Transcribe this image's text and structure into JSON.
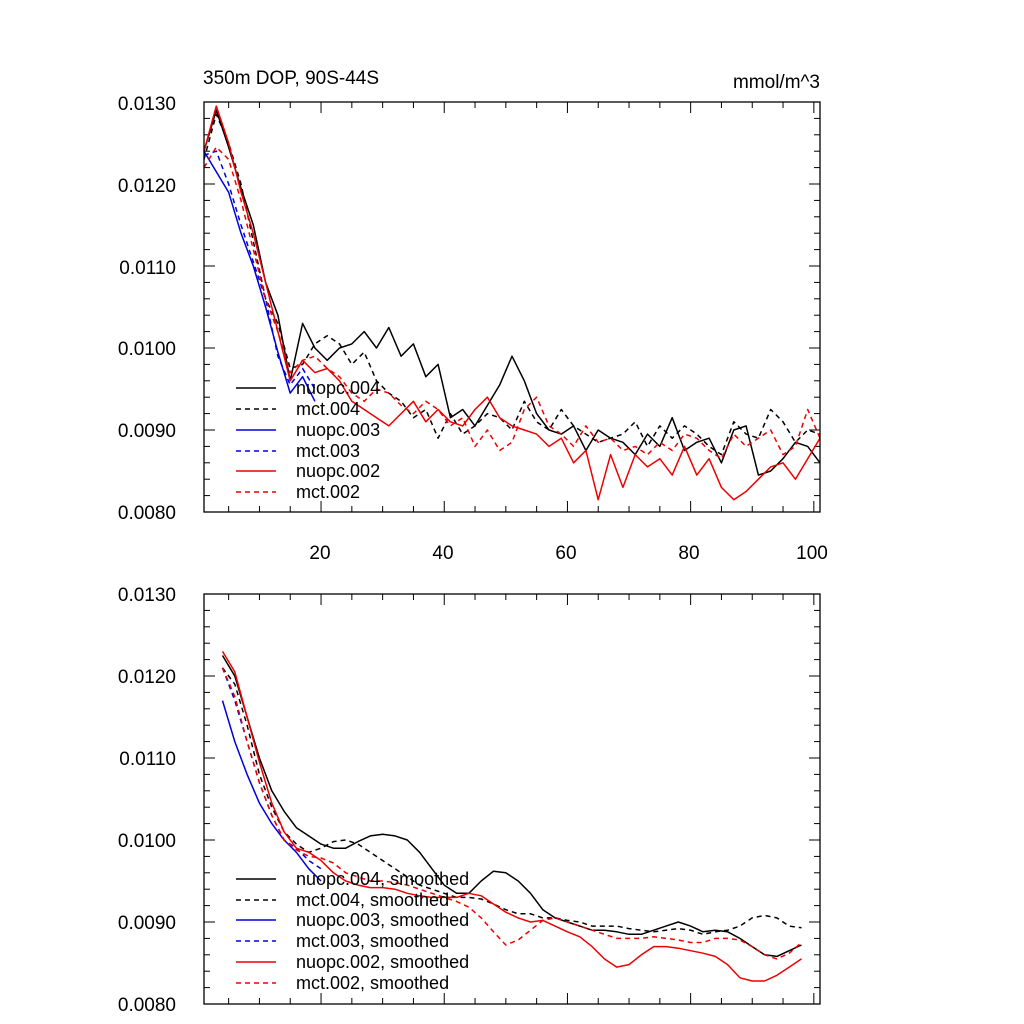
{
  "colors": {
    "black": "#000000",
    "blue": "#0000dd",
    "red": "#ee0000"
  },
  "chart_data": [
    {
      "type": "line",
      "title": "350m DOP, 90S-44S",
      "units": "mmol/m^3",
      "xlim": [
        1,
        101
      ],
      "ylim": [
        0.008,
        0.013
      ],
      "yticks": [
        "0.0130",
        "0.0120",
        "0.0110",
        "0.0100",
        "0.0090",
        "0.0080"
      ],
      "xticks": [
        "20",
        "40",
        "60",
        "80",
        "100"
      ],
      "legend_position": "lower-left",
      "series": [
        {
          "name": "nuopc.004",
          "color": "#000000",
          "dash": "solid",
          "x": [
            1,
            3,
            5,
            7,
            9,
            11,
            13,
            15,
            17,
            19,
            21,
            23,
            25,
            27,
            29,
            31,
            33,
            35,
            37,
            39,
            41,
            43,
            45,
            47,
            49,
            51,
            53,
            55,
            57,
            59,
            61,
            63,
            65,
            67,
            69,
            71,
            73,
            75,
            77,
            79,
            81,
            83,
            85,
            87,
            89,
            91,
            93,
            95,
            97,
            99,
            101
          ],
          "y": [
            0.0124,
            0.0129,
            0.01245,
            0.01195,
            0.0115,
            0.0108,
            0.0104,
            0.0096,
            0.0103,
            0.01,
            0.00985,
            0.01,
            0.01005,
            0.0102,
            0.01,
            0.01025,
            0.0099,
            0.01005,
            0.00965,
            0.0098,
            0.00915,
            0.00925,
            0.00905,
            0.0093,
            0.00955,
            0.0099,
            0.0096,
            0.0092,
            0.009,
            0.00895,
            0.00905,
            0.00875,
            0.009,
            0.0089,
            0.00885,
            0.0087,
            0.00895,
            0.0088,
            0.00915,
            0.00875,
            0.00885,
            0.0089,
            0.0086,
            0.009,
            0.00905,
            0.00845,
            0.0085,
            0.00865,
            0.00885,
            0.0088,
            0.0086
          ]
        },
        {
          "name": "mct.004",
          "color": "#000000",
          "dash": "dashed",
          "x": [
            1,
            3,
            5,
            7,
            9,
            11,
            13,
            15,
            17,
            19,
            21,
            23,
            25,
            27,
            29,
            31,
            33,
            35,
            37,
            39,
            41,
            43,
            45,
            47,
            49,
            51,
            53,
            55,
            57,
            59,
            61,
            63,
            65,
            67,
            69,
            71,
            73,
            75,
            77,
            79,
            81,
            83,
            85,
            87,
            89,
            91,
            93,
            95,
            97,
            99,
            101
          ],
          "y": [
            0.0123,
            0.01285,
            0.0125,
            0.012,
            0.0113,
            0.0106,
            0.0103,
            0.00975,
            0.0098,
            0.01005,
            0.01015,
            0.01005,
            0.0098,
            0.00995,
            0.0096,
            0.00945,
            0.00935,
            0.00915,
            0.00925,
            0.0089,
            0.0092,
            0.00895,
            0.00905,
            0.0092,
            0.00915,
            0.009,
            0.00935,
            0.0091,
            0.009,
            0.00925,
            0.00905,
            0.00895,
            0.00885,
            0.0089,
            0.00895,
            0.0091,
            0.0088,
            0.00905,
            0.0089,
            0.00905,
            0.00895,
            0.0088,
            0.0087,
            0.0091,
            0.00895,
            0.0089,
            0.00925,
            0.0091,
            0.00885,
            0.009,
            0.00895
          ]
        },
        {
          "name": "nuopc.003",
          "color": "#0000dd",
          "dash": "solid",
          "x": [
            1,
            3,
            5,
            7,
            9,
            11,
            13,
            15,
            17,
            19
          ],
          "y": [
            0.0124,
            0.01215,
            0.0119,
            0.0114,
            0.011,
            0.0105,
            0.00995,
            0.00945,
            0.00965,
            0.00935
          ]
        },
        {
          "name": "mct.003",
          "color": "#0000dd",
          "dash": "dashed",
          "x": [
            1,
            3,
            5,
            7,
            9,
            11,
            13,
            15,
            17,
            19
          ],
          "y": [
            0.01235,
            0.0124,
            0.012,
            0.0115,
            0.01105,
            0.0106,
            0.0099,
            0.00955,
            0.00975,
            0.0095
          ]
        },
        {
          "name": "nuopc.002",
          "color": "#ee0000",
          "dash": "solid",
          "x": [
            1,
            3,
            5,
            7,
            9,
            11,
            13,
            15,
            17,
            19,
            21,
            23,
            25,
            27,
            29,
            31,
            33,
            35,
            37,
            39,
            41,
            43,
            45,
            47,
            49,
            51,
            53,
            55,
            57,
            59,
            61,
            63,
            65,
            67,
            69,
            71,
            73,
            75,
            77,
            79,
            81,
            83,
            85,
            87,
            89,
            91,
            93,
            95,
            97,
            99,
            101
          ],
          "y": [
            0.0124,
            0.01295,
            0.0125,
            0.0119,
            0.0114,
            0.0108,
            0.0102,
            0.0096,
            0.00985,
            0.0097,
            0.00975,
            0.0096,
            0.00935,
            0.00925,
            0.00915,
            0.00905,
            0.0092,
            0.00935,
            0.0091,
            0.00925,
            0.0091,
            0.00905,
            0.00925,
            0.0094,
            0.00915,
            0.00905,
            0.009,
            0.00895,
            0.0088,
            0.0089,
            0.0086,
            0.00875,
            0.00815,
            0.0087,
            0.0083,
            0.0087,
            0.00855,
            0.00865,
            0.00845,
            0.0088,
            0.00845,
            0.00865,
            0.0083,
            0.00815,
            0.00825,
            0.0084,
            0.00855,
            0.0086,
            0.0084,
            0.00865,
            0.0089
          ]
        },
        {
          "name": "mct.002",
          "color": "#ee0000",
          "dash": "dashed",
          "x": [
            1,
            3,
            5,
            7,
            9,
            11,
            13,
            15,
            17,
            19,
            21,
            23,
            25,
            27,
            29,
            31,
            33,
            35,
            37,
            39,
            41,
            43,
            45,
            47,
            49,
            51,
            53,
            55,
            57,
            59,
            61,
            63,
            65,
            67,
            69,
            71,
            73,
            75,
            77,
            79,
            81,
            83,
            85,
            87,
            89,
            91,
            93,
            95,
            97,
            99,
            101
          ],
          "y": [
            0.0122,
            0.01245,
            0.0123,
            0.0118,
            0.0112,
            0.0106,
            0.0102,
            0.0097,
            0.00985,
            0.0099,
            0.00975,
            0.00965,
            0.00945,
            0.00935,
            0.0095,
            0.00945,
            0.0093,
            0.0092,
            0.00935,
            0.00925,
            0.00905,
            0.00915,
            0.0088,
            0.009,
            0.00875,
            0.00885,
            0.00925,
            0.0094,
            0.00905,
            0.00895,
            0.0088,
            0.00905,
            0.00885,
            0.0089,
            0.00875,
            0.0088,
            0.0087,
            0.00885,
            0.00875,
            0.00895,
            0.0089,
            0.00875,
            0.00865,
            0.00895,
            0.0088,
            0.0089,
            0.009,
            0.0087,
            0.0088,
            0.00925,
            0.0089
          ]
        }
      ]
    },
    {
      "type": "line",
      "title": "",
      "xlim": [
        1,
        101
      ],
      "ylim": [
        0.008,
        0.013
      ],
      "yticks": [
        "0.0130",
        "0.0120",
        "0.0110",
        "0.0100",
        "0.0090",
        "0.0080"
      ],
      "xticks": [],
      "legend_position": "lower-left",
      "series": [
        {
          "name": "nuopc.004, smoothed",
          "color": "#000000",
          "dash": "solid",
          "x": [
            4,
            6,
            8,
            10,
            12,
            14,
            16,
            18,
            20,
            22,
            24,
            26,
            28,
            30,
            32,
            34,
            36,
            38,
            40,
            42,
            44,
            46,
            48,
            50,
            52,
            54,
            56,
            58,
            60,
            62,
            64,
            66,
            68,
            70,
            72,
            74,
            76,
            78,
            80,
            82,
            84,
            86,
            88,
            90,
            92,
            94,
            96,
            98
          ],
          "y": [
            0.01225,
            0.012,
            0.0115,
            0.011,
            0.0106,
            0.01035,
            0.01015,
            0.01005,
            0.00995,
            0.0099,
            0.0099,
            0.00998,
            0.01005,
            0.01007,
            0.01005,
            0.01,
            0.00985,
            0.00965,
            0.00945,
            0.00935,
            0.00935,
            0.0095,
            0.00962,
            0.0096,
            0.0095,
            0.00935,
            0.00915,
            0.00905,
            0.009,
            0.00895,
            0.0089,
            0.0089,
            0.00888,
            0.00885,
            0.00885,
            0.0089,
            0.00895,
            0.009,
            0.00895,
            0.00888,
            0.0089,
            0.00888,
            0.0088,
            0.0087,
            0.0086,
            0.00858,
            0.00865,
            0.00872
          ]
        },
        {
          "name": "mct.004, smoothed",
          "color": "#000000",
          "dash": "dashed",
          "x": [
            4,
            6,
            8,
            10,
            12,
            14,
            16,
            18,
            20,
            22,
            24,
            26,
            28,
            30,
            32,
            34,
            36,
            38,
            40,
            42,
            44,
            46,
            48,
            50,
            52,
            54,
            56,
            58,
            60,
            62,
            64,
            66,
            68,
            70,
            72,
            74,
            76,
            78,
            80,
            82,
            84,
            86,
            88,
            90,
            92,
            94,
            96,
            98
          ],
          "y": [
            0.0121,
            0.0119,
            0.0114,
            0.0108,
            0.0104,
            0.0101,
            0.00995,
            0.00985,
            0.0099,
            0.00998,
            0.01,
            0.00995,
            0.00985,
            0.00975,
            0.00965,
            0.00955,
            0.00945,
            0.0094,
            0.00935,
            0.0093,
            0.0093,
            0.00928,
            0.00922,
            0.00915,
            0.0091,
            0.0091,
            0.00905,
            0.00905,
            0.00902,
            0.009,
            0.00895,
            0.00895,
            0.00895,
            0.00892,
            0.0089,
            0.00888,
            0.0089,
            0.00892,
            0.0089,
            0.00885,
            0.00888,
            0.0089,
            0.00895,
            0.00905,
            0.00908,
            0.00905,
            0.00895,
            0.00893
          ]
        },
        {
          "name": "nuopc.003, smoothed",
          "color": "#0000dd",
          "dash": "solid",
          "x": [
            4,
            6,
            8,
            10,
            12,
            14,
            16,
            18,
            20
          ],
          "y": [
            0.0117,
            0.0112,
            0.0108,
            0.01045,
            0.0102,
            0.01,
            0.00985,
            0.00965,
            0.0095
          ]
        },
        {
          "name": "mct.003, smoothed",
          "color": "#0000dd",
          "dash": "dashed",
          "x": [
            4,
            6,
            8,
            10,
            12,
            14,
            16,
            18,
            20
          ],
          "y": [
            0.0121,
            0.0117,
            0.0112,
            0.0107,
            0.0103,
            0.01,
            0.0099,
            0.00975,
            0.00965
          ]
        },
        {
          "name": "nuopc.002, smoothed",
          "color": "#ee0000",
          "dash": "solid",
          "x": [
            4,
            6,
            8,
            10,
            12,
            14,
            16,
            18,
            20,
            22,
            24,
            26,
            28,
            30,
            32,
            34,
            36,
            38,
            40,
            42,
            44,
            46,
            48,
            50,
            52,
            54,
            56,
            58,
            60,
            62,
            64,
            66,
            68,
            70,
            72,
            74,
            76,
            78,
            80,
            82,
            84,
            86,
            88,
            90,
            92,
            94,
            96,
            98
          ],
          "y": [
            0.0123,
            0.01205,
            0.0115,
            0.01095,
            0.01045,
            0.0101,
            0.0099,
            0.00985,
            0.00975,
            0.0096,
            0.0095,
            0.00945,
            0.00942,
            0.00942,
            0.0094,
            0.00935,
            0.00932,
            0.0093,
            0.0093,
            0.0093,
            0.00935,
            0.00932,
            0.00922,
            0.00912,
            0.00905,
            0.009,
            0.00902,
            0.00895,
            0.00888,
            0.00882,
            0.0087,
            0.00855,
            0.00845,
            0.00848,
            0.0086,
            0.0087,
            0.0087,
            0.00868,
            0.00865,
            0.00862,
            0.00858,
            0.00848,
            0.00832,
            0.00828,
            0.00828,
            0.00835,
            0.00845,
            0.00855
          ]
        },
        {
          "name": "mct.002, smoothed",
          "color": "#ee0000",
          "dash": "dashed",
          "x": [
            4,
            6,
            8,
            10,
            12,
            14,
            16,
            18,
            20,
            22,
            24,
            26,
            28,
            30,
            32,
            34,
            36,
            38,
            40,
            42,
            44,
            46,
            48,
            50,
            52,
            54,
            56,
            58,
            60,
            62,
            64,
            66,
            68,
            70,
            72,
            74,
            76,
            78,
            80,
            82,
            84,
            86,
            88,
            90,
            92,
            94,
            96,
            98
          ],
          "y": [
            0.0121,
            0.01175,
            0.0112,
            0.0107,
            0.0103,
            0.01,
            0.00988,
            0.0098,
            0.00978,
            0.00972,
            0.0096,
            0.00955,
            0.0095,
            0.0095,
            0.00948,
            0.00945,
            0.0094,
            0.00935,
            0.0093,
            0.00925,
            0.00918,
            0.00905,
            0.00888,
            0.00872,
            0.00878,
            0.0089,
            0.00902,
            0.00905,
            0.009,
            0.00895,
            0.0089,
            0.00885,
            0.0088,
            0.0088,
            0.0088,
            0.00882,
            0.0088,
            0.00878,
            0.00875,
            0.00875,
            0.0088,
            0.0088,
            0.00878,
            0.0087,
            0.0086,
            0.00855,
            0.00862,
            0.00875
          ]
        }
      ]
    }
  ]
}
